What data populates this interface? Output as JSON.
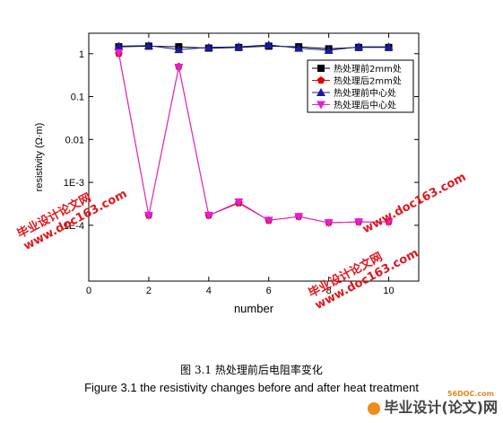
{
  "chart_data": {
    "type": "line",
    "xlabel": "number",
    "ylabel": "resistivity (Ω·m)",
    "xlim": [
      0,
      11
    ],
    "ylim_log": [
      5e-06,
      3
    ],
    "y_scale": "log",
    "x_ticks": [
      0,
      2,
      4,
      6,
      8,
      10
    ],
    "y_ticks": [
      {
        "value": 1,
        "label": "1"
      },
      {
        "value": 0.1,
        "label": "0.1"
      },
      {
        "value": 0.01,
        "label": "0.01"
      },
      {
        "value": 0.001,
        "label": "1E-3"
      },
      {
        "value": 0.0001,
        "label": "1E-4"
      }
    ],
    "legend_position": "top-right",
    "x": [
      1,
      2,
      3,
      4,
      5,
      6,
      7,
      8,
      9,
      10
    ],
    "series": [
      {
        "name": "热处理前2mm处",
        "marker": "square",
        "color": "#000000",
        "values": [
          1.45,
          1.5,
          1.45,
          1.35,
          1.4,
          1.5,
          1.45,
          1.3,
          1.4,
          1.4
        ]
      },
      {
        "name": "热处理后2mm处",
        "marker": "pentagon",
        "color": "#e00000",
        "values": [
          1.0,
          0.00017,
          0.5,
          0.00017,
          0.00033,
          0.00013,
          0.00016,
          0.000115,
          0.00012,
          0.00012
        ]
      },
      {
        "name": "热处理前中心处",
        "marker": "triangle-up",
        "color": "#1a1aa0",
        "values": [
          1.5,
          1.55,
          1.25,
          1.4,
          1.45,
          1.6,
          1.35,
          1.2,
          1.45,
          1.45
        ]
      },
      {
        "name": "热处理后中心处",
        "marker": "triangle-down",
        "color": "#e020d8",
        "values": [
          1.05,
          0.00017,
          0.48,
          0.00017,
          0.00035,
          0.00013,
          0.00016,
          0.000115,
          0.00012,
          0.00012
        ]
      }
    ]
  },
  "caption": {
    "zh": "图 3.1  热处理前后电阻率变化",
    "en": "Figure 3.1 the resistivity changes before and after heat treatment"
  },
  "watermarks": {
    "line1": "毕业设计论文网",
    "line2": "www.doc163.com"
  },
  "footer": {
    "site_small": "56DOC.com",
    "label": "毕业设计(论文)网"
  }
}
